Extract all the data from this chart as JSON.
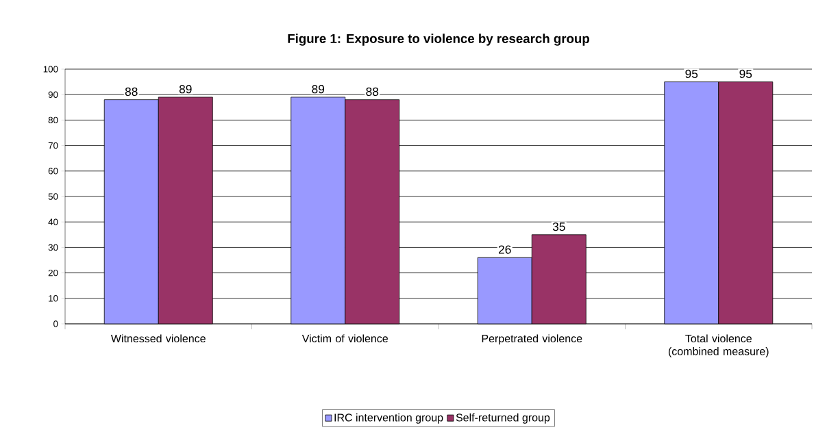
{
  "chart_data": {
    "type": "bar",
    "title": "Figure 1: Exposure to violence by research group",
    "categories": [
      "Witnessed violence",
      "Victim of violence",
      "Perpetrated violence",
      "Total violence (combined measure)"
    ],
    "series": [
      {
        "name": "IRC intervention group",
        "color": "#9999ff",
        "values": [
          88,
          89,
          26,
          95
        ]
      },
      {
        "name": "Self-returned group",
        "color": "#993366",
        "values": [
          89,
          88,
          35,
          95
        ]
      }
    ],
    "ylim": [
      0,
      100
    ],
    "yticks": [
      0,
      10,
      20,
      30,
      40,
      50,
      60,
      70,
      80,
      90,
      100
    ],
    "grid": "y",
    "legend": "bottom",
    "data_labels": true
  }
}
